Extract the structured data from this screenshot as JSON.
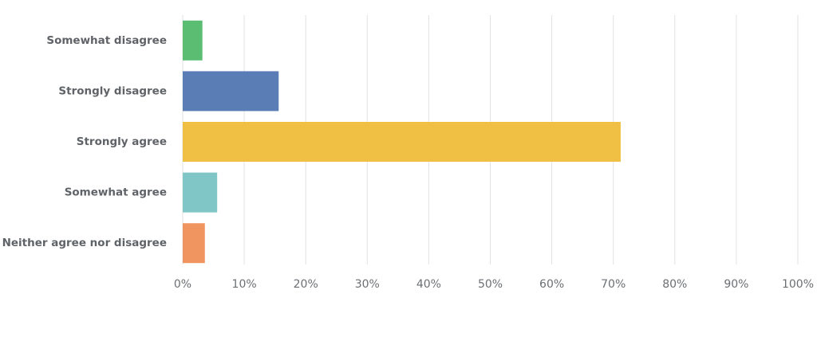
{
  "chart_data": {
    "type": "bar",
    "orientation": "horizontal",
    "categories": [
      "Somewhat disagree",
      "Strongly disagree",
      "Strongly agree",
      "Somewhat agree",
      "Neither agree nor disagree"
    ],
    "values": [
      3.2,
      15.6,
      71.2,
      5.6,
      3.6
    ],
    "colors": [
      "#5bbd72",
      "#5a7db6",
      "#efc043",
      "#80c6c7",
      "#f0955f"
    ],
    "xlim": [
      0,
      100
    ],
    "xticks": [
      {
        "value": 0,
        "label": "0%"
      },
      {
        "value": 10,
        "label": "10%"
      },
      {
        "value": 20,
        "label": "20%"
      },
      {
        "value": 30,
        "label": "30%"
      },
      {
        "value": 40,
        "label": "40%"
      },
      {
        "value": 50,
        "label": "50%"
      },
      {
        "value": 60,
        "label": "60%"
      },
      {
        "value": 70,
        "label": "70%"
      },
      {
        "value": 80,
        "label": "80%"
      },
      {
        "value": 90,
        "label": "90%"
      },
      {
        "value": 100,
        "label": "100%"
      }
    ],
    "grid": true
  }
}
